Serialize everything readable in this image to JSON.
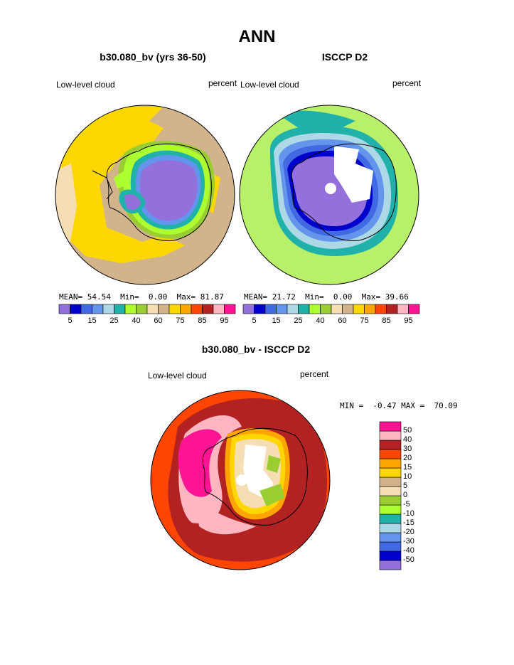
{
  "title": "ANN",
  "panels": [
    {
      "id": "model",
      "title": "b30.080_bv (yrs 36-50)",
      "variable": "Low-level cloud",
      "units": "percent",
      "stats": {
        "mean": "54.54",
        "min": "0.00",
        "max": "81.87"
      },
      "stats_labels": {
        "mean": "MEAN=",
        "min": "Min=",
        "max": "Max="
      }
    },
    {
      "id": "obs",
      "title": "ISCCP D2",
      "variable": "Low-level cloud",
      "units": "percent",
      "stats": {
        "mean": "21.72",
        "min": "0.00",
        "max": "39.66"
      },
      "stats_labels": {
        "mean": "MEAN=",
        "min": "Min=",
        "max": "Max="
      }
    },
    {
      "id": "diff",
      "title": "b30.080_bv - ISCCP D2",
      "variable": "Low-level cloud",
      "units": "percent",
      "stats": {
        "min": "-0.47",
        "max": "70.09"
      },
      "stats_labels": {
        "min": "MIN =",
        "max": "MAX ="
      }
    }
  ],
  "colorbar_abs": {
    "colors": [
      "#9370db",
      "#0000cd",
      "#4169e1",
      "#6495ed",
      "#add8e6",
      "#20b2aa",
      "#adff2f",
      "#9acd32",
      "#f5deb3",
      "#d2b48c",
      "#ffd700",
      "#ffa500",
      "#ff4500",
      "#b22222",
      "#ffb6c1",
      "#ff1493"
    ],
    "tick_labels": [
      "5",
      "15",
      "25",
      "40",
      "60",
      "75",
      "85",
      "95"
    ]
  },
  "colorbar_diff": {
    "colors": [
      "#9370db",
      "#0000cd",
      "#4169e1",
      "#6495ed",
      "#add8e6",
      "#20b2aa",
      "#adff2f",
      "#9acd32",
      "#f5deb3",
      "#d2b48c",
      "#ffd700",
      "#ffa500",
      "#ff4500",
      "#b22222",
      "#ffb6c1",
      "#ff1493"
    ],
    "tick_labels": [
      "-50",
      "-40",
      "-30",
      "-20",
      "-15",
      "-10",
      "-5",
      "0",
      "5",
      "10",
      "15",
      "20",
      "30",
      "40",
      "50"
    ]
  },
  "map_colors": {
    "ice": "#9370db",
    "land": "#ffffff",
    "coast": "#000000"
  }
}
